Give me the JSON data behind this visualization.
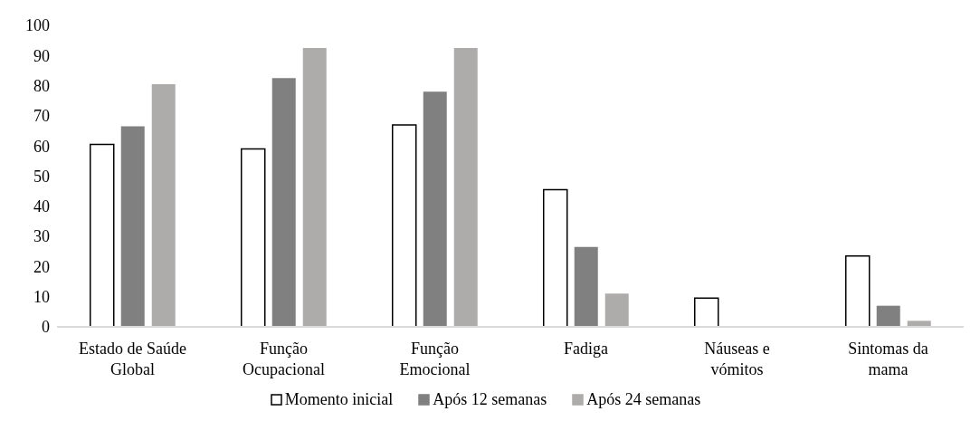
{
  "chart_data": {
    "type": "bar",
    "categories": [
      "Estado de Saúde Global",
      "Função Ocupacional",
      "Função Emocional",
      "Fadiga",
      "Náuseas e vómitos",
      "Sintomas da mama"
    ],
    "series": [
      {
        "name": "Momento inicial",
        "color": "#ffffff",
        "values": [
          60.5,
          59,
          67,
          45.5,
          9.5,
          23.5
        ]
      },
      {
        "name": "Após 12 semanas",
        "color": "#808080",
        "values": [
          66.5,
          82.5,
          78,
          26.5,
          0,
          7
        ]
      },
      {
        "name": "Após 24 semanas",
        "color": "#aeabab",
        "values": [
          80.5,
          92.5,
          92.5,
          11,
          0,
          2
        ]
      }
    ],
    "ylim": [
      0,
      100
    ],
    "yticks": [
      0,
      10,
      20,
      30,
      40,
      50,
      60,
      70,
      80,
      90,
      100
    ],
    "grid": false,
    "legend": "bottom"
  }
}
